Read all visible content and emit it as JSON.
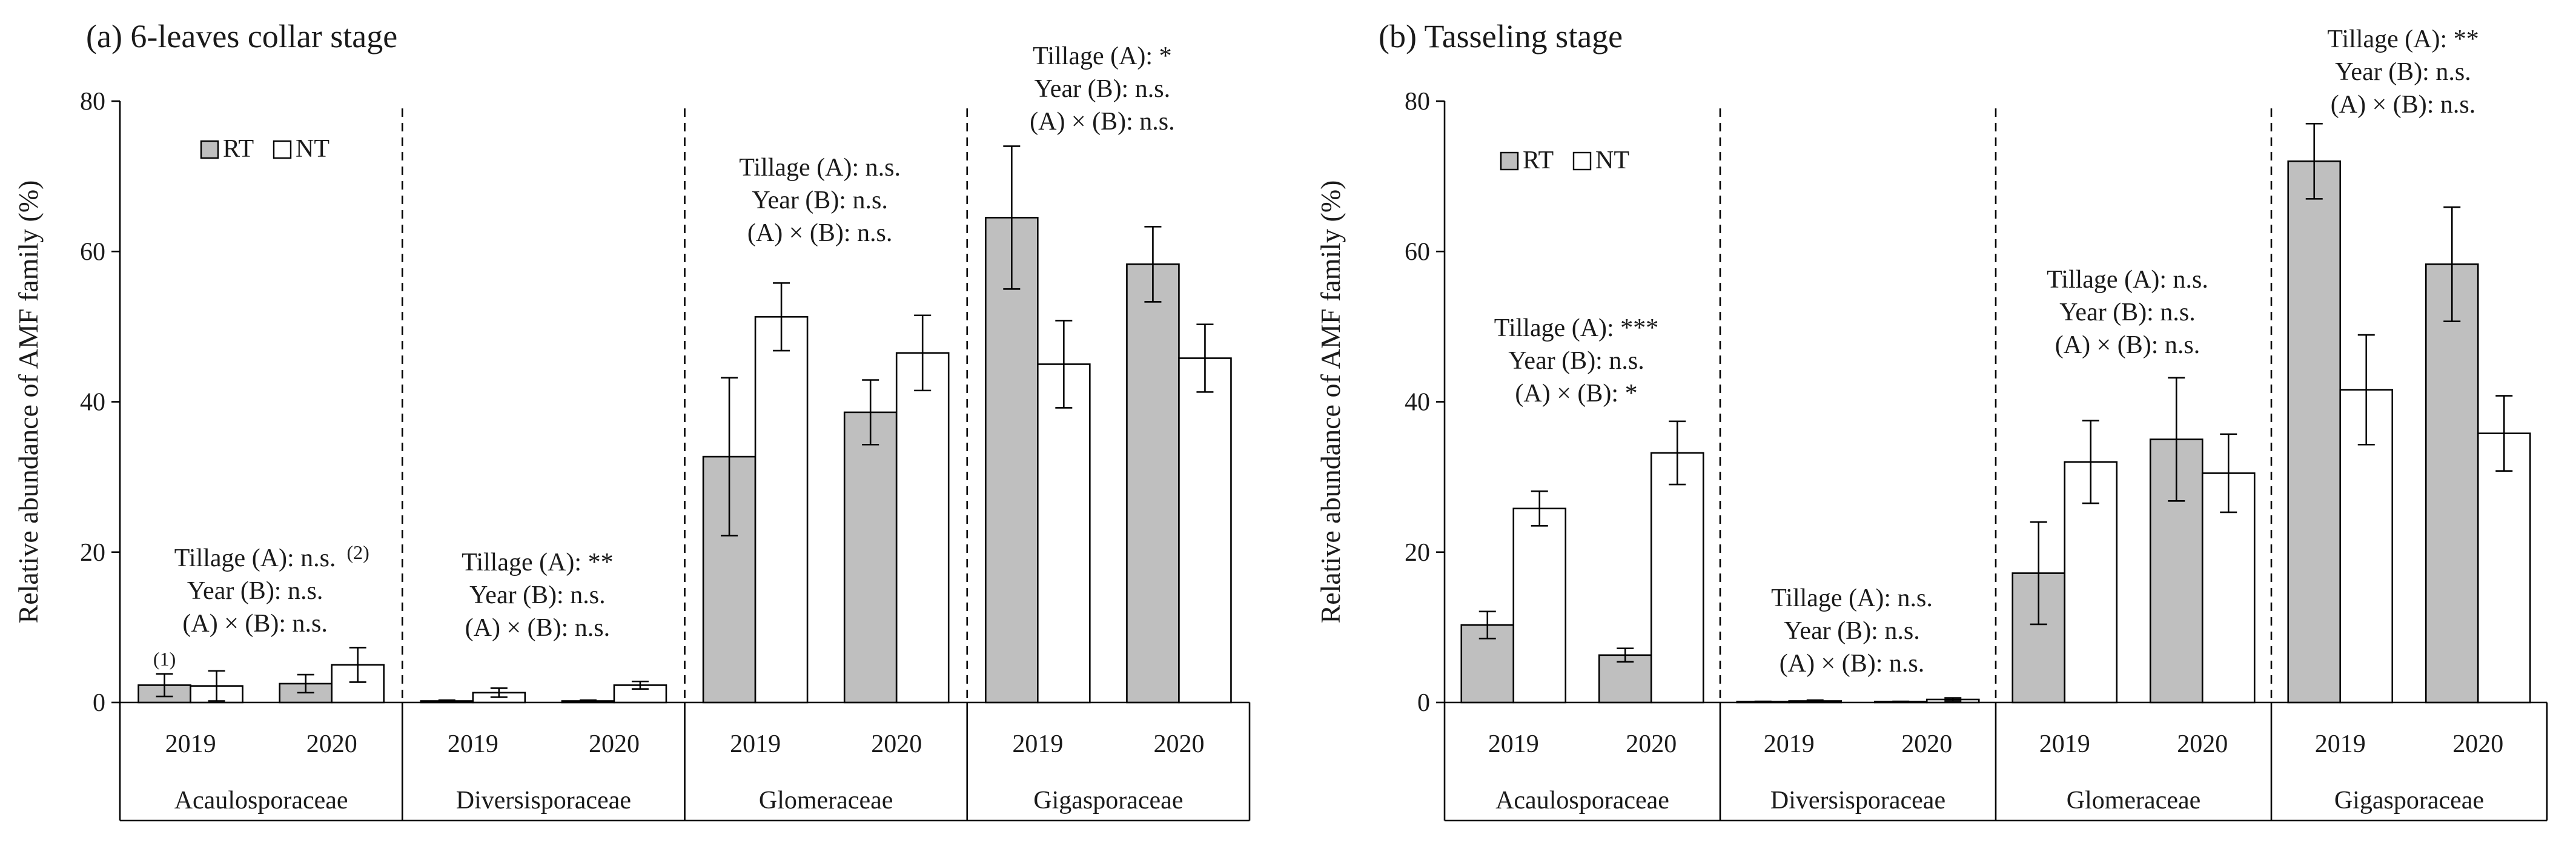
{
  "chart_data": [
    {
      "type": "bar",
      "title": "(a) 6-leaves collar stage",
      "ylabel": "Relative abundance of AMF family (%)",
      "ylim": [
        0,
        80
      ],
      "yticks": [
        0,
        20,
        40,
        60,
        80
      ],
      "legend": {
        "location": "top-left",
        "entries": [
          "RT",
          "NT"
        ]
      },
      "colors": {
        "RT": "#bfbfbf",
        "NT": "#ffffff"
      },
      "groups": [
        {
          "family": "Acaulosporaceae",
          "years": [
            "2019",
            "2020"
          ],
          "RT": [
            2.3,
            2.5
          ],
          "RT_err": [
            1.5,
            1.2
          ],
          "NT": [
            2.2,
            5.0
          ],
          "NT_err": [
            2.0,
            2.3
          ],
          "annotation": [
            "Tillage (A): n.s.",
            "Year (B): n.s.",
            "(A) × (B): n.s."
          ],
          "annotation_superscript": "(2)",
          "bar_note": "(1)"
        },
        {
          "family": "Diversisporaceae",
          "years": [
            "2019",
            "2020"
          ],
          "RT": [
            0.2,
            0.2
          ],
          "RT_err": [
            0.1,
            0.1
          ],
          "NT": [
            1.3,
            2.3
          ],
          "NT_err": [
            0.6,
            0.5
          ],
          "annotation": [
            "Tillage (A): **",
            "Year (B): n.s.",
            "(A) × (B): n.s."
          ]
        },
        {
          "family": "Glomeraceae",
          "years": [
            "2019",
            "2020"
          ],
          "RT": [
            32.7,
            38.6
          ],
          "RT_err": [
            10.5,
            4.3
          ],
          "NT": [
            51.3,
            46.5
          ],
          "NT_err": [
            4.5,
            5.0
          ],
          "annotation": [
            "Tillage (A): n.s.",
            "Year (B): n.s.",
            "(A) × (B): n.s."
          ]
        },
        {
          "family": "Gigasporaceae",
          "years": [
            "2019",
            "2020"
          ],
          "RT": [
            64.5,
            58.3
          ],
          "RT_err": [
            9.5,
            5.0
          ],
          "NT": [
            45.0,
            45.8
          ],
          "NT_err": [
            5.8,
            4.5
          ],
          "annotation": [
            "Tillage (A): *",
            "Year (B): n.s.",
            "(A) × (B): n.s."
          ]
        }
      ]
    },
    {
      "type": "bar",
      "title": "(b) Tasseling stage",
      "ylabel": "Relative abundance of AMF family (%)",
      "ylim": [
        0,
        80
      ],
      "yticks": [
        0,
        20,
        40,
        60,
        80
      ],
      "legend": {
        "location": "top-left",
        "entries": [
          "RT",
          "NT"
        ]
      },
      "colors": {
        "RT": "#bfbfbf",
        "NT": "#ffffff"
      },
      "groups": [
        {
          "family": "Acaulosporaceae",
          "years": [
            "2019",
            "2020"
          ],
          "RT": [
            10.3,
            6.3
          ],
          "RT_err": [
            1.8,
            0.9
          ],
          "NT": [
            25.8,
            33.2
          ],
          "NT_err": [
            2.3,
            4.2
          ],
          "annotation": [
            "Tillage (A): ***",
            "Year (B): n.s.",
            "(A) × (B): *"
          ]
        },
        {
          "family": "Diversisporaceae",
          "years": [
            "2019",
            "2020"
          ],
          "RT": [
            0.1,
            0.1
          ],
          "RT_err": [
            0.05,
            0.05
          ],
          "NT": [
            0.2,
            0.4
          ],
          "NT_err": [
            0.1,
            0.2
          ],
          "annotation": [
            "Tillage (A): n.s.",
            "Year (B): n.s.",
            "(A) × (B): n.s."
          ]
        },
        {
          "family": "Glomeraceae",
          "years": [
            "2019",
            "2020"
          ],
          "RT": [
            17.2,
            35.0
          ],
          "RT_err": [
            6.8,
            8.2
          ],
          "NT": [
            32.0,
            30.5
          ],
          "NT_err": [
            5.5,
            5.2
          ],
          "annotation": [
            "Tillage (A): n.s.",
            "Year (B): n.s.",
            "(A) × (B): n.s."
          ]
        },
        {
          "family": "Gigasporaceae",
          "years": [
            "2019",
            "2020"
          ],
          "RT": [
            72.0,
            58.3
          ],
          "RT_err": [
            5.0,
            7.6
          ],
          "NT": [
            41.6,
            35.8
          ],
          "NT_err": [
            7.3,
            5.0
          ],
          "annotation": [
            "Tillage (A): **",
            "Year (B): n.s.",
            "(A) × (B): n.s."
          ]
        }
      ]
    }
  ]
}
